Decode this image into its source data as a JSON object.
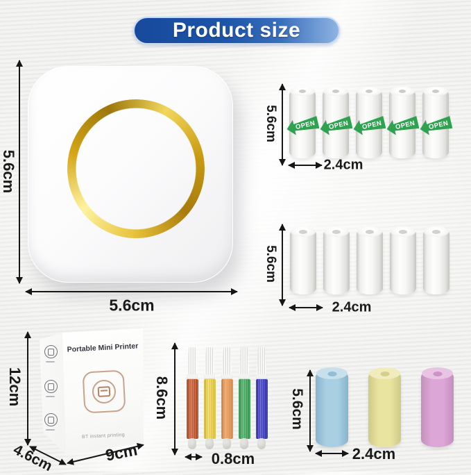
{
  "title": "Product size",
  "accent": {
    "pill_gradient_start": "#17499c",
    "pill_gradient_end": "#8fb4e2",
    "pill_border": "#c6daf3",
    "pill_text": "#ffffff"
  },
  "printer": {
    "height_label": "5.6cm",
    "width_label": "5.6cm",
    "ring_color": "#d4a517",
    "body_color": "#fbfbfc"
  },
  "open_rolls": {
    "count": 5,
    "sticker_label": "OPEN",
    "sticker_color": "#2fa24f",
    "height_label": "5.6cm",
    "diameter_label": "2.4cm"
  },
  "white_rolls": {
    "count": 5,
    "height_label": "5.6cm",
    "diameter_label": "2.4cm"
  },
  "box": {
    "title": "Portable Mini Printer",
    "subtitle": "BT instant printing",
    "height_label": "12cm",
    "depth_label": "4.6cm",
    "width_label": "9cm",
    "outline_color": "#c9a28d"
  },
  "markers": {
    "count": 5,
    "height_label": "8.6cm",
    "width_label": "0.8cm",
    "colors": [
      "#c84616",
      "#f3d435",
      "#f39140",
      "#2ea44d",
      "#2727c3"
    ]
  },
  "colored_rolls": {
    "height_label": "5.6cm",
    "diameter_label": "2.4cm",
    "rolls": [
      {
        "name": "blue",
        "body": "#a9cfe2",
        "edge": "#87b4cc",
        "top": "#c8dfec",
        "hole": "#92bdd4"
      },
      {
        "name": "yellow",
        "body": "#e9e4a0",
        "edge": "#cfc987",
        "top": "#f0ecbd",
        "hole": "#d5cf8e"
      },
      {
        "name": "pink",
        "body": "#dca7d6",
        "edge": "#c48fbe",
        "top": "#e9c3e4",
        "hole": "#cb93c6"
      }
    ]
  }
}
